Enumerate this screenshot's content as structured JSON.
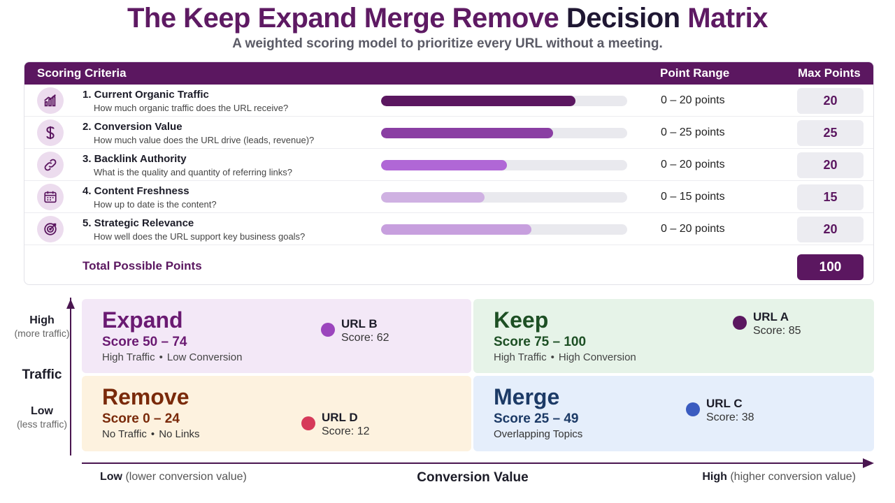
{
  "title": {
    "part1": "The Keep Expand Merge Remove",
    "part2": "Decision",
    "part3": "Matrix"
  },
  "subtitle": "A weighted scoring model to prioritize every URL without a meeting.",
  "table": {
    "headers": {
      "criteria": "Scoring Criteria",
      "range": "Point Range",
      "max": "Max Points"
    },
    "rows": [
      {
        "name": "1. Current Organic Traffic",
        "desc": "How much organic traffic does the URL receive?",
        "range": "0 – 20 points",
        "max": "20",
        "fill": 0.79,
        "color": "#5b1760",
        "icon": "bar-chart-icon"
      },
      {
        "name": "2. Conversion Value",
        "desc": "How much value does the URL drive (leads, revenue)?",
        "range": "0 – 25 points",
        "max": "25",
        "fill": 0.7,
        "color": "#8a3ea3",
        "icon": "dollar-icon"
      },
      {
        "name": "3. Backlink Authority",
        "desc": "What is the quality and quantity of referring links?",
        "range": "0 – 20 points",
        "max": "20",
        "fill": 0.51,
        "color": "#b067d6",
        "icon": "link-icon"
      },
      {
        "name": "4. Content Freshness",
        "desc": "How up to date is the content?",
        "range": "0 – 15 points",
        "max": "15",
        "fill": 0.42,
        "color": "#cfb1e2",
        "icon": "calendar-icon"
      },
      {
        "name": "5. Strategic Relevance",
        "desc": "How well does the URL support key business goals?",
        "range": "0 – 20 points",
        "max": "20",
        "fill": 0.61,
        "color": "#c79fde",
        "icon": "target-icon"
      }
    ],
    "total_label": "Total Possible Points",
    "total_value": "100"
  },
  "matrix": {
    "expand": {
      "name": "Expand",
      "score": "Score 50 – 74",
      "desc_a": "High Traffic",
      "desc_b": "Low Conversion"
    },
    "keep": {
      "name": "Keep",
      "score": "Score 75 – 100",
      "desc_a": "High Traffic",
      "desc_b": "High Conversion"
    },
    "remove": {
      "name": "Remove",
      "score": "Score 0 – 24",
      "desc_a": "No Traffic",
      "desc_b": "No Links"
    },
    "merge": {
      "name": "Merge",
      "score": "Score 25 – 49",
      "desc": "Overlapping Topics"
    },
    "urls": {
      "b": {
        "name": "URL B",
        "score": "Score: 62",
        "color": "#9b45bd"
      },
      "a": {
        "name": "URL A",
        "score": "Score: 85",
        "color": "#5b1760"
      },
      "d": {
        "name": "URL D",
        "score": "Score: 12",
        "color": "#d63a5a"
      },
      "c": {
        "name": "URL C",
        "score": "Score: 38",
        "color": "#3a5bc0"
      }
    },
    "separator": "•"
  },
  "axes": {
    "y": {
      "title": "Traffic",
      "high": "High",
      "high_sub": "(more traffic)",
      "low": "Low",
      "low_sub": "(less traffic)"
    },
    "x": {
      "title": "Conversion Value",
      "low": "Low",
      "low_sub": "(lower conversion value)",
      "high": "High",
      "high_sub": "(higher conversion value)"
    }
  }
}
